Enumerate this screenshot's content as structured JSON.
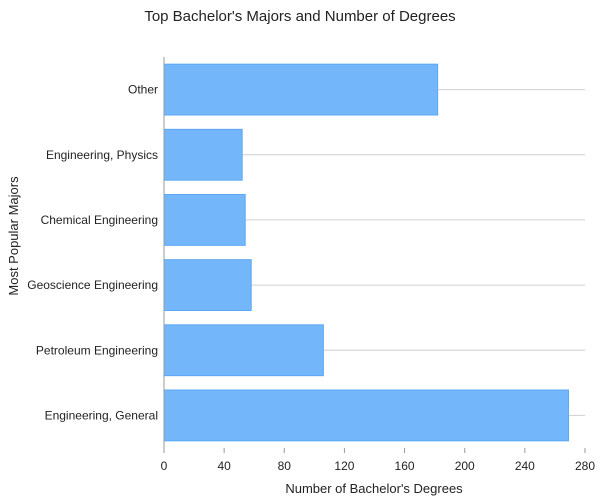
{
  "chart_data": {
    "type": "bar",
    "orientation": "horizontal",
    "title": "Top Bachelor's Majors and Number of Degrees",
    "xlabel": "Number of Bachelor's Degrees",
    "ylabel": "Most Popular Majors",
    "categories": [
      "Other",
      "Engineering, Physics",
      "Chemical Engineering",
      "Geoscience Engineering",
      "Petroleum Engineering",
      "Engineering, General"
    ],
    "values": [
      182,
      52,
      54,
      58,
      106,
      269
    ],
    "xlim": [
      0,
      280
    ],
    "xticks": [
      "0",
      "40",
      "80",
      "120",
      "160",
      "200",
      "240",
      "280"
    ],
    "grid": "horizontal",
    "bar_color": "#73b7fa",
    "bar_edge_color": "#5aa8f5"
  }
}
